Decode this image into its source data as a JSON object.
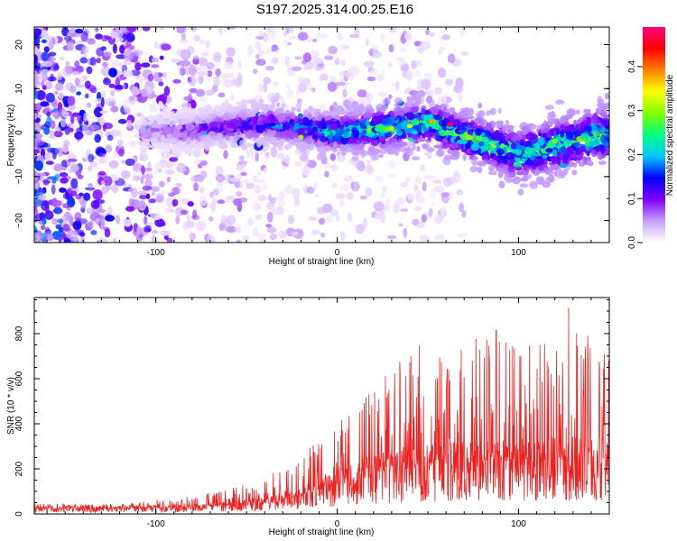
{
  "title": "S197.2025.314.00.25.E16",
  "chart_data": [
    {
      "type": "heatmap",
      "xlabel": "Height of straight line (km)",
      "ylabel": "Frequency (Hz)",
      "xlim": [
        -167,
        150
      ],
      "ylim": [
        -25,
        24
      ],
      "x_ticks": [
        -100,
        0,
        100
      ],
      "y_ticks": [
        -20,
        -10,
        0,
        10,
        20
      ],
      "colorbar": {
        "label": "Normalized spectral amplitude",
        "range": [
          0,
          0.49
        ],
        "ticks": [
          "0.0",
          "0.1",
          "0.2",
          "0.3",
          "0.4"
        ],
        "tick_values": [
          0,
          0.1,
          0.2,
          0.3,
          0.4
        ],
        "colors": [
          "#ffffff",
          "#c7a0ff",
          "#7f00ff",
          "#0000ff",
          "#00c8ff",
          "#00ff80",
          "#80ff00",
          "#ffff00",
          "#ff8000",
          "#ff0000",
          "#ff0080"
        ]
      },
      "signal_band": {
        "description": "energy concentrated near 0 Hz, broadband noise at heights below -100 km",
        "center_freq_hz": [
          [
            -100,
            0
          ],
          [
            -40,
            2
          ],
          [
            0,
            0
          ],
          [
            50,
            2
          ],
          [
            100,
            -5
          ],
          [
            150,
            0
          ]
        ]
      }
    },
    {
      "type": "line",
      "xlabel": "Height of straight line (km)",
      "ylabel": "SNR (10 * v/v)",
      "xlim": [
        -167,
        150
      ],
      "ylim": [
        0,
        960
      ],
      "x_ticks": [
        -100,
        0,
        100
      ],
      "y_ticks": [
        0,
        200,
        400,
        600,
        800
      ],
      "line_color": "#ee2020",
      "envelope": {
        "x": [
          -167,
          -120,
          -80,
          -60,
          -40,
          -20,
          0,
          20,
          40,
          60,
          80,
          100,
          120,
          130,
          150
        ],
        "baseline": [
          25,
          25,
          30,
          40,
          50,
          80,
          130,
          180,
          200,
          220,
          230,
          230,
          240,
          240,
          240
        ],
        "peak": [
          45,
          45,
          80,
          110,
          160,
          260,
          400,
          550,
          780,
          680,
          830,
          800,
          780,
          960,
          700
        ]
      }
    }
  ]
}
